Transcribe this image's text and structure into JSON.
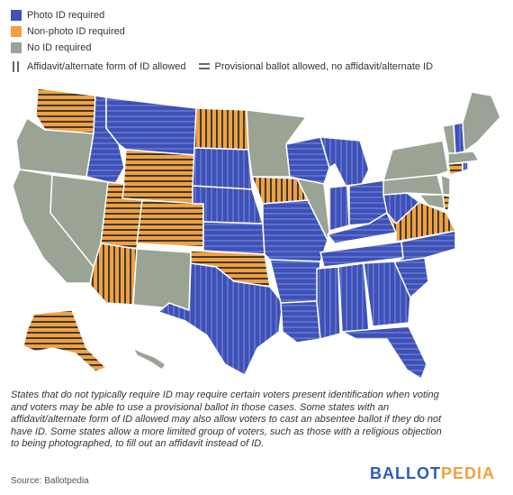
{
  "legend": {
    "photo": {
      "label": "Photo ID required",
      "color": "#3f51b5"
    },
    "nonphoto": {
      "label": "Non-photo ID required",
      "color": "#f2a03d"
    },
    "noid": {
      "label": "No ID required",
      "color": "#9aa394"
    },
    "affidavit": "Affidavit/alternate form of ID allowed",
    "provisional": "Provisional ballot allowed, no affidavit/alternate ID"
  },
  "note": "States that do not typically require ID may require certain voters present identification when voting and voters may be able to use a provisional ballot in those cases. Some states with an affidavit/alternate form of ID allowed may also allow voters to cast an absentee ballot if they do not have ID. Some states allow a more limited group of voters, such as those with a religious objection to being photographed, to fill out an affidavit instead of ID.",
  "source": "Source: Ballotpedia",
  "brand": {
    "part1": "BALLOT",
    "part2": "PEDIA"
  }
}
